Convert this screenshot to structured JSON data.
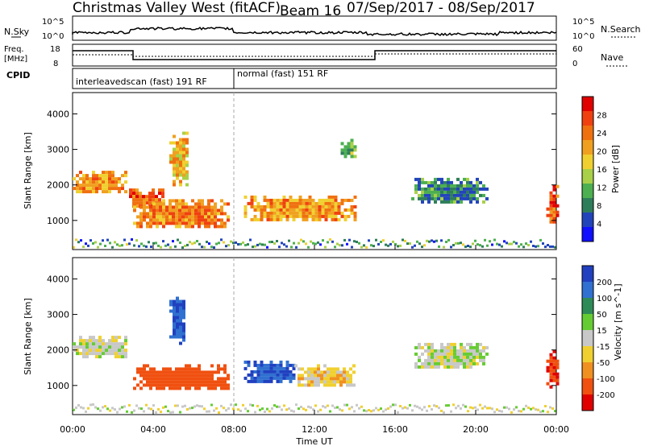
{
  "header": {
    "station": "Christmas Valley West (fitACF)",
    "beam": "Beam 16",
    "dates": "07/Sep/2017 - 08/Sep/2017"
  },
  "noise_panel": {
    "left_label": "N.Sky",
    "left_ticks": [
      "10^5",
      "10^0"
    ],
    "right_label": "N.Search",
    "right_ticks": [
      "10^5",
      "10^0"
    ]
  },
  "freq_panel": {
    "left_label_1": "Freq.",
    "left_label_2": "[MHz]",
    "left_ticks": [
      "18",
      "8"
    ],
    "right_label": "Nave",
    "right_ticks": [
      "60",
      "0"
    ]
  },
  "cpid_panel": {
    "label": "CPID",
    "segments": [
      "interleavedscan (fast) 191 RF",
      "normal (fast) 151 RF"
    ]
  },
  "axes": {
    "ylabel": "Slant Range [km]",
    "xlabel": "Time UT",
    "xticks": [
      "00:00",
      "04:00",
      "08:00",
      "12:00",
      "16:00",
      "20:00",
      "00:00"
    ],
    "yticks": [
      "1000",
      "2000",
      "3000",
      "4000"
    ]
  },
  "colorbars": {
    "power": {
      "label": "Power [dB]",
      "ticks": [
        "4",
        "8",
        "12",
        "16",
        "20",
        "24",
        "28"
      ],
      "colors": [
        "#1010ff",
        "#2244bb",
        "#2e7d5a",
        "#4caf50",
        "#a8d048",
        "#f0d030",
        "#f0a020",
        "#f07010",
        "#f04010",
        "#e00000"
      ]
    },
    "velocity": {
      "label": "Velocity [m s^-1]",
      "ticks": [
        "200",
        "100",
        "50",
        "15",
        "-15",
        "-50",
        "-100",
        "-200"
      ],
      "colors": [
        "#2040c0",
        "#3070d0",
        "#2e8b57",
        "#66cc33",
        "#c8c8c8",
        "#f0d030",
        "#f09020",
        "#f05010",
        "#e00000"
      ]
    }
  },
  "chart_data": {
    "type": "heatmap",
    "x_range_hours": [
      0,
      24
    ],
    "y_range_km": [
      180,
      4600
    ],
    "power_regions": [
      {
        "t0": 0.0,
        "t1": 2.7,
        "r0": 1800,
        "r1": 2400,
        "level": 22
      },
      {
        "t0": 2.8,
        "t1": 4.5,
        "r0": 1400,
        "r1": 1900,
        "level": 26
      },
      {
        "t0": 3.0,
        "t1": 7.8,
        "r0": 800,
        "r1": 1600,
        "level": 24
      },
      {
        "t0": 4.8,
        "t1": 5.7,
        "r0": 2000,
        "r1": 3500,
        "level": 20
      },
      {
        "t0": 8.5,
        "t1": 14.0,
        "r0": 1000,
        "r1": 1700,
        "level": 22
      },
      {
        "t0": 13.3,
        "t1": 14.0,
        "r0": 2800,
        "r1": 3300,
        "level": 14
      },
      {
        "t0": 16.8,
        "t1": 20.5,
        "r0": 1500,
        "r1": 2200,
        "level": 10
      },
      {
        "t0": 23.5,
        "t1": 24.0,
        "r0": 1000,
        "r1": 2000,
        "level": 26
      }
    ],
    "velocity_regions": [
      {
        "t0": 0.0,
        "t1": 2.7,
        "r0": 1800,
        "r1": 2400,
        "level": 0
      },
      {
        "t0": 3.0,
        "t1": 7.8,
        "r0": 900,
        "r1": 1600,
        "level": -150
      },
      {
        "t0": 8.5,
        "t1": 11.0,
        "r0": 1100,
        "r1": 1700,
        "level": 150
      },
      {
        "t0": 11.0,
        "t1": 14.0,
        "r0": 1000,
        "r1": 1600,
        "level": -30
      },
      {
        "t0": 4.8,
        "t1": 5.6,
        "r0": 2200,
        "r1": 3500,
        "level": 150
      },
      {
        "t0": 16.8,
        "t1": 20.5,
        "r0": 1500,
        "r1": 2200,
        "level": 0
      },
      {
        "t0": 23.5,
        "t1": 24.0,
        "r0": 1000,
        "r1": 2000,
        "level": -200
      }
    ],
    "cpid_change_hours": 8.0
  }
}
